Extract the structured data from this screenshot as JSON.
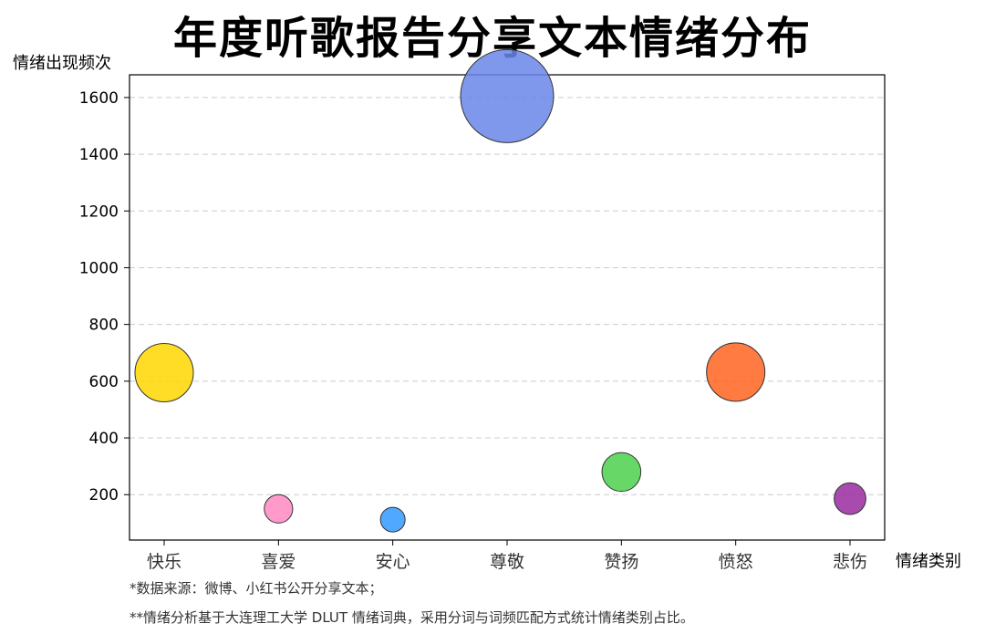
{
  "chart_data": {
    "type": "scatter",
    "title": "年度听歌报告分享文本情绪分布",
    "xlabel": "情绪类别",
    "ylabel": "情绪出现频次",
    "categories": [
      "快乐",
      "喜爱",
      "安心",
      "尊敬",
      "赞扬",
      "愤怒",
      "悲伤"
    ],
    "values": [
      630,
      150,
      112,
      1605,
      280,
      632,
      186
    ],
    "colors": [
      "#FFD700",
      "#FF88C2",
      "#3399FF",
      "#6A86E8",
      "#4CD04C",
      "#FF6420",
      "#9A2AA0"
    ],
    "ylim": [
      40,
      1680
    ],
    "yticks": [
      200,
      400,
      600,
      800,
      1000,
      1200,
      1400,
      1600
    ],
    "grid": "horizontal-dashed",
    "bubble_size_encodes": "value"
  },
  "notes": [
    "*数据来源：微博、小红书公开分享文本；",
    "**情绪分析基于大连理工大学 DLUT 情绪词典，采用分词与词频匹配方式统计情绪类别占比。"
  ]
}
